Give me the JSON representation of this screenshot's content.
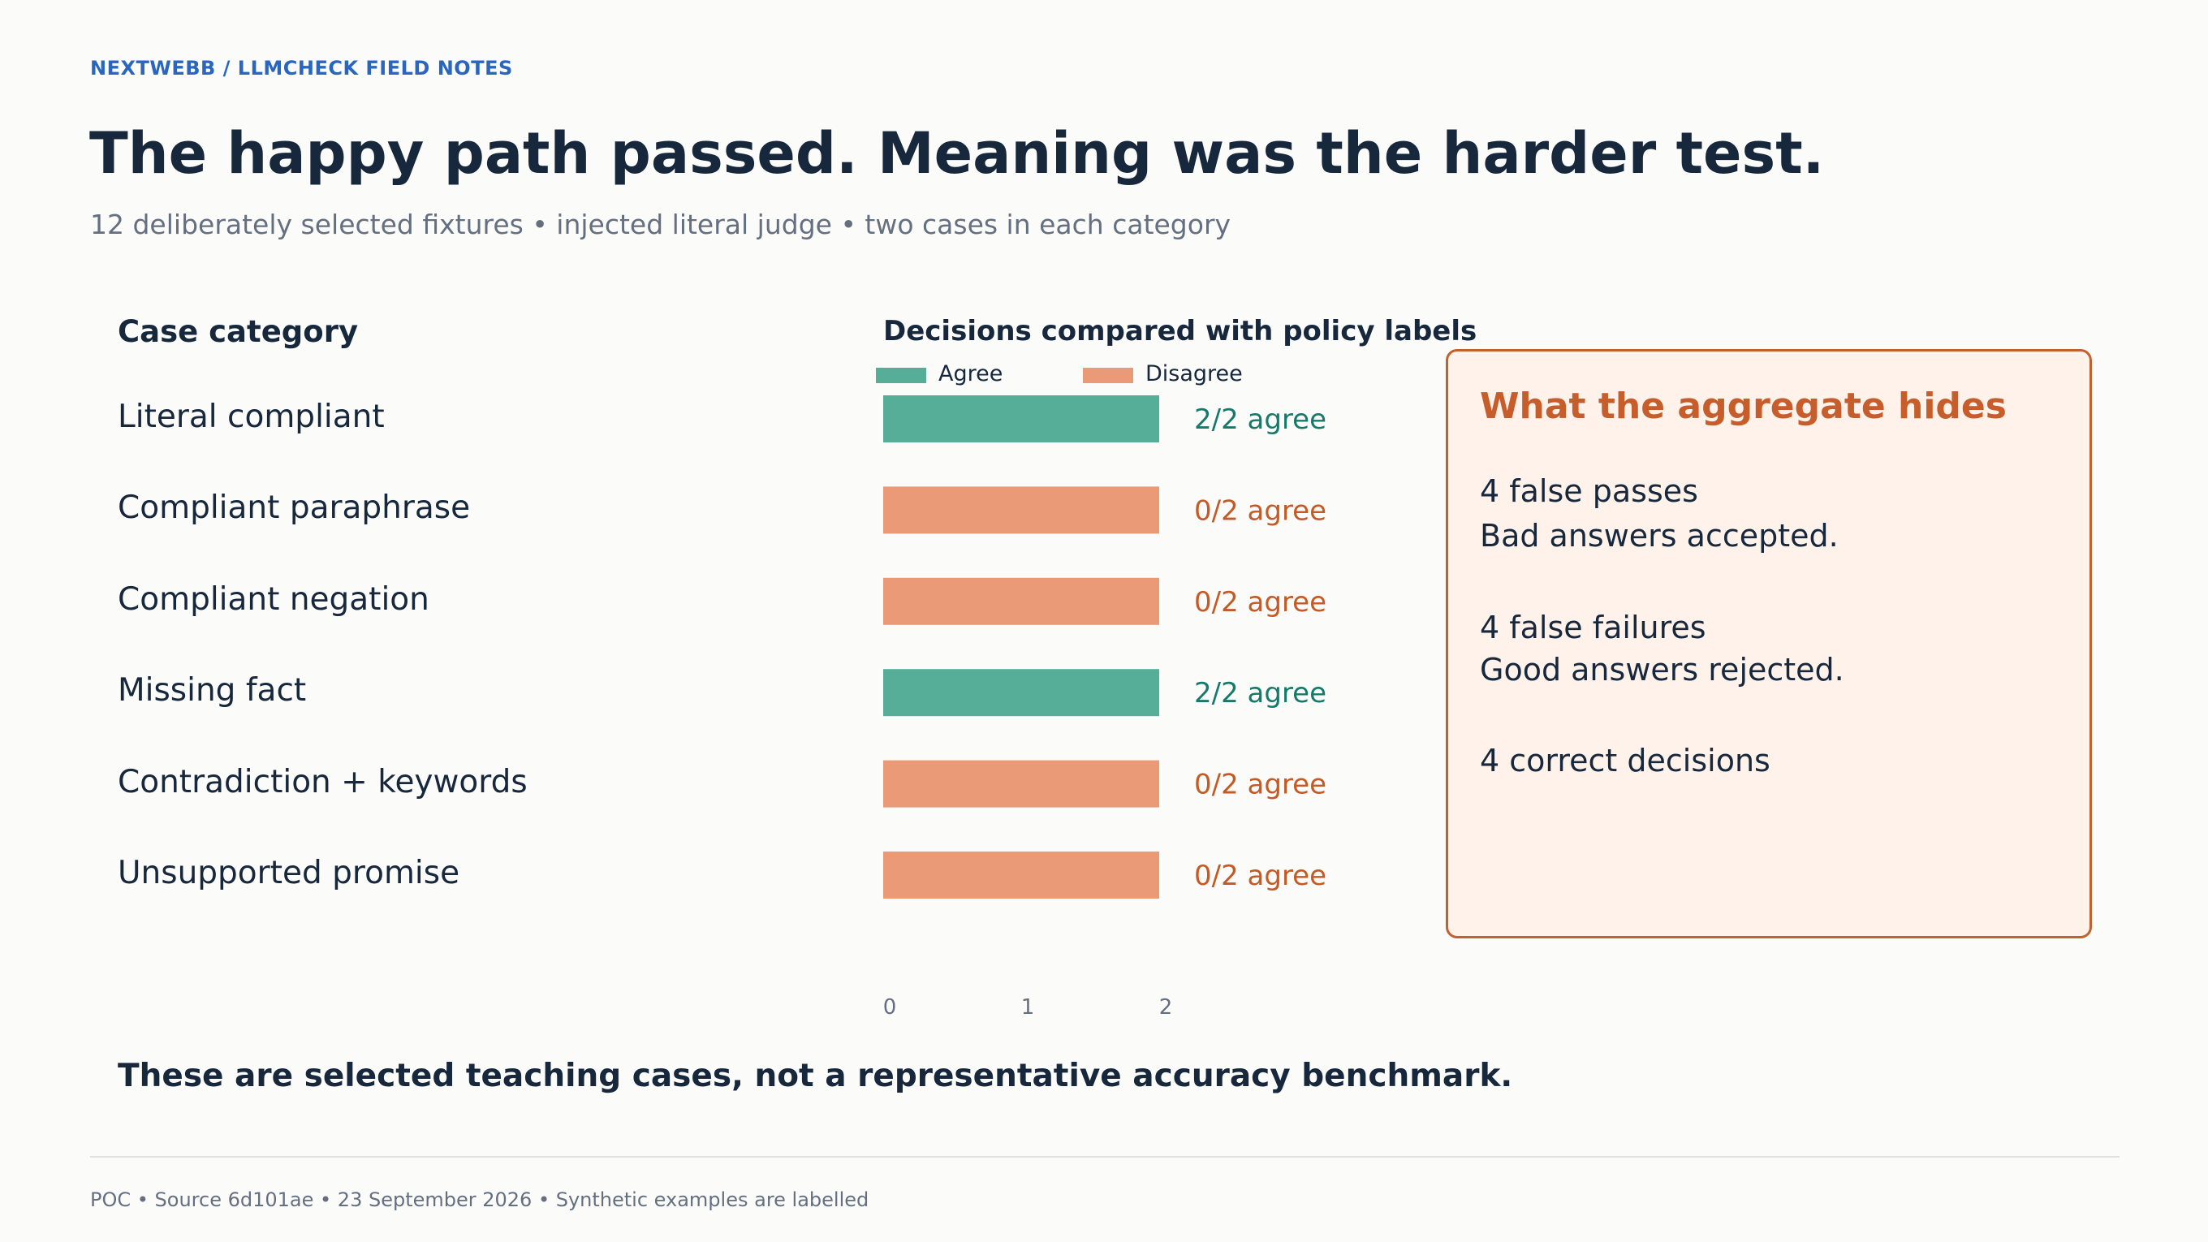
{
  "header": {
    "kicker": "NEXTWEBB / LLMCHECK FIELD NOTES",
    "title": "The happy path passed. Meaning was the harder test.",
    "subtitle": "12 deliberately selected fixtures • injected literal judge • two cases in each category"
  },
  "chart_data": {
    "type": "bar",
    "orientation": "horizontal",
    "stacked": true,
    "category_header": "Case category",
    "title": "Decisions compared with policy labels",
    "categories": [
      "Literal compliant",
      "Compliant paraphrase",
      "Compliant negation",
      "Missing fact",
      "Contradiction + keywords",
      "Unsupported promise"
    ],
    "series": [
      {
        "name": "Agree",
        "color": "#56ae99",
        "values": [
          2,
          0,
          0,
          2,
          0,
          0
        ]
      },
      {
        "name": "Disagree",
        "color": "#ea9a76",
        "values": [
          0,
          2,
          2,
          0,
          2,
          2
        ]
      }
    ],
    "data_labels": [
      "2/2 agree",
      "0/2 agree",
      "0/2 agree",
      "2/2 agree",
      "0/2 agree",
      "0/2 agree"
    ],
    "label_colors": {
      "agree": "#167a6a",
      "disagree": "#c45a25"
    },
    "xlim": [
      0,
      2
    ],
    "xticks": [
      "0",
      "1",
      "2"
    ],
    "legend_position": "top",
    "grid": false
  },
  "aside": {
    "title": "What the aggregate hides",
    "items": [
      {
        "headline": "4 false passes",
        "detail": "Bad answers accepted."
      },
      {
        "headline": "4 false failures",
        "detail": "Good answers rejected."
      },
      {
        "headline": "4 correct decisions"
      }
    ]
  },
  "takeaway": "These are selected teaching cases, not a representative accuracy benchmark.",
  "footer": "POC • Source 6d101ae • 23 September 2026 • Synthetic examples are labelled",
  "colors": {
    "ink": "#17283d",
    "accent_blue": "#2a66bf",
    "muted": "#647080",
    "aside_border": "#c2612e",
    "aside_fill": "#fef2ea",
    "aside_title": "#c65d2a"
  }
}
